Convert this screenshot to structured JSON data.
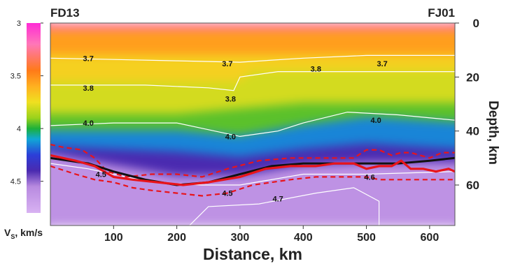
{
  "chart_data": {
    "type": "heatmap",
    "title": "",
    "xlabel": "Distance, km",
    "ylabel": "Depth, km",
    "colorbar_label": "Vs, km/s",
    "colorbar_label_main": "V",
    "colorbar_label_sub": "S",
    "colorbar_label_rest": ", km/s",
    "station_left": "FD13",
    "station_right": "FJ01",
    "xlim": [
      0,
      640
    ],
    "ylim": [
      0,
      75
    ],
    "y_inverted": true,
    "x_ticks": [
      100,
      200,
      300,
      400,
      500,
      600
    ],
    "y_ticks": [
      0,
      20,
      40,
      60
    ],
    "colorbar_range": [
      3.0,
      4.8
    ],
    "colorbar_ticks": [
      "3",
      "3.5",
      "4",
      "4.5"
    ],
    "colormap_stops": [
      {
        "v": 3.0,
        "color": "#ff2bd6"
      },
      {
        "v": 3.2,
        "color": "#ff77b8"
      },
      {
        "v": 3.45,
        "color": "#ff7a18"
      },
      {
        "v": 3.6,
        "color": "#ffb020"
      },
      {
        "v": 3.75,
        "color": "#f0e020"
      },
      {
        "v": 3.9,
        "color": "#9ad21c"
      },
      {
        "v": 4.0,
        "color": "#1cb03a"
      },
      {
        "v": 4.1,
        "color": "#10a8d6"
      },
      {
        "v": 4.25,
        "color": "#2b3fd8"
      },
      {
        "v": 4.4,
        "color": "#4a2ab0"
      },
      {
        "v": 4.55,
        "color": "#b88ae0"
      },
      {
        "v": 4.8,
        "color": "#d8b2f2"
      }
    ],
    "velocity_layers": [
      {
        "vs": 3.25,
        "top": [
          [
            0,
            0
          ],
          [
            640,
            0
          ]
        ],
        "bottom": [
          [
            0,
            3
          ],
          [
            640,
            3
          ]
        ]
      },
      {
        "vs": 3.55,
        "top": [
          [
            0,
            3
          ],
          [
            640,
            3
          ]
        ],
        "bottom": [
          [
            0,
            12
          ],
          [
            640,
            12
          ]
        ]
      },
      {
        "vs": 3.7,
        "top": [
          [
            0,
            12
          ],
          [
            640,
            12
          ]
        ],
        "bottom": [
          [
            0,
            22
          ],
          [
            300,
            22
          ],
          [
            320,
            18
          ],
          [
            640,
            18
          ]
        ]
      },
      {
        "vs": 3.8,
        "top": [
          [
            0,
            22
          ],
          [
            300,
            22
          ],
          [
            320,
            18
          ],
          [
            640,
            18
          ]
        ],
        "bottom": [
          [
            0,
            34
          ],
          [
            200,
            34
          ],
          [
            300,
            32
          ],
          [
            400,
            30
          ],
          [
            640,
            30
          ]
        ]
      },
      {
        "vs": 3.95,
        "top": [
          [
            0,
            34
          ],
          [
            200,
            34
          ],
          [
            300,
            32
          ],
          [
            400,
            30
          ],
          [
            640,
            30
          ]
        ],
        "bottom": [
          [
            0,
            40
          ],
          [
            200,
            40
          ],
          [
            300,
            42
          ],
          [
            400,
            38
          ],
          [
            500,
            35
          ],
          [
            640,
            37
          ]
        ]
      },
      {
        "vs": 4.15,
        "top": [
          [
            0,
            40
          ],
          [
            200,
            40
          ],
          [
            300,
            42
          ],
          [
            400,
            38
          ],
          [
            500,
            35
          ],
          [
            640,
            37
          ]
        ],
        "bottom": [
          [
            0,
            46
          ],
          [
            200,
            48
          ],
          [
            300,
            50
          ],
          [
            400,
            47
          ],
          [
            500,
            45
          ],
          [
            640,
            47
          ]
        ]
      },
      {
        "vs": 4.4,
        "top": [
          [
            0,
            46
          ],
          [
            200,
            48
          ],
          [
            300,
            50
          ],
          [
            400,
            47
          ],
          [
            500,
            45
          ],
          [
            640,
            47
          ]
        ],
        "bottom": [
          [
            0,
            49
          ],
          [
            100,
            53
          ],
          [
            200,
            57
          ],
          [
            300,
            57
          ],
          [
            400,
            53
          ],
          [
            500,
            52
          ],
          [
            640,
            52
          ]
        ]
      },
      {
        "vs": 4.6,
        "top": [
          [
            0,
            49
          ],
          [
            100,
            53
          ],
          [
            200,
            57
          ],
          [
            300,
            57
          ],
          [
            400,
            53
          ],
          [
            500,
            52
          ],
          [
            640,
            52
          ]
        ],
        "bottom": [
          [
            0,
            75
          ],
          [
            640,
            75
          ]
        ]
      }
    ],
    "contours": [
      {
        "label": "3.7",
        "points": [
          [
            0,
            13
          ],
          [
            100,
            13.5
          ],
          [
            200,
            14
          ],
          [
            300,
            14.5
          ],
          [
            400,
            13
          ],
          [
            500,
            12
          ],
          [
            640,
            12
          ]
        ]
      },
      {
        "label": "3.8",
        "points": [
          [
            0,
            23
          ],
          [
            150,
            23
          ],
          [
            250,
            24
          ],
          [
            290,
            25
          ],
          [
            300,
            20
          ],
          [
            360,
            18
          ],
          [
            400,
            18
          ],
          [
            500,
            18
          ],
          [
            640,
            18
          ]
        ]
      },
      {
        "label": "4.0",
        "points": [
          [
            0,
            38
          ],
          [
            100,
            37
          ],
          [
            200,
            37
          ],
          [
            260,
            40
          ],
          [
            300,
            42
          ],
          [
            360,
            40
          ],
          [
            400,
            37
          ],
          [
            470,
            33
          ],
          [
            550,
            34
          ],
          [
            640,
            36
          ]
        ]
      },
      {
        "label": "4.5",
        "points": [
          [
            0,
            52
          ],
          [
            60,
            54
          ],
          [
            100,
            56
          ],
          [
            160,
            59
          ],
          [
            240,
            60
          ],
          [
            300,
            60
          ],
          [
            400,
            56
          ],
          [
            500,
            56
          ],
          [
            640,
            55
          ]
        ]
      },
      {
        "label": "4.7",
        "points": [
          [
            220,
            75
          ],
          [
            250,
            68
          ],
          [
            330,
            67
          ],
          [
            420,
            63
          ],
          [
            480,
            61
          ],
          [
            520,
            66
          ],
          [
            520,
            75
          ]
        ]
      }
    ],
    "contour_labels": [
      {
        "text": "3.7",
        "x": 60,
        "y": 13
      },
      {
        "text": "3.7",
        "x": 280,
        "y": 15
      },
      {
        "text": "3.8",
        "x": 420,
        "y": 17
      },
      {
        "text": "3.7",
        "x": 525,
        "y": 15
      },
      {
        "text": "3.8",
        "x": 60,
        "y": 24
      },
      {
        "text": "3.8",
        "x": 285,
        "y": 28
      },
      {
        "text": "4.0",
        "x": 60,
        "y": 37
      },
      {
        "text": "4.0",
        "x": 285,
        "y": 42
      },
      {
        "text": "4.0",
        "x": 515,
        "y": 36
      },
      {
        "text": "4.5",
        "x": 80,
        "y": 56
      },
      {
        "text": "4.5",
        "x": 280,
        "y": 63
      },
      {
        "text": "4.7",
        "x": 360,
        "y": 65
      },
      {
        "text": "4.6",
        "x": 505,
        "y": 57
      }
    ],
    "moho_black": [
      [
        0,
        50
      ],
      [
        60,
        52
      ],
      [
        100,
        55
      ],
      [
        150,
        58
      ],
      [
        200,
        60
      ],
      [
        250,
        59
      ],
      [
        300,
        56
      ],
      [
        350,
        53
      ],
      [
        400,
        52
      ],
      [
        450,
        52
      ],
      [
        500,
        52
      ],
      [
        550,
        52
      ],
      [
        600,
        51
      ],
      [
        640,
        50
      ]
    ],
    "moho_red": [
      [
        0,
        49
      ],
      [
        20,
        50
      ],
      [
        40,
        51
      ],
      [
        70,
        53
      ],
      [
        100,
        57
      ],
      [
        130,
        58
      ],
      [
        170,
        59
      ],
      [
        210,
        60
      ],
      [
        250,
        59
      ],
      [
        300,
        57
      ],
      [
        340,
        54
      ],
      [
        380,
        53
      ],
      [
        420,
        53
      ],
      [
        450,
        52
      ],
      [
        480,
        52
      ],
      [
        500,
        54
      ],
      [
        520,
        53
      ],
      [
        540,
        53
      ],
      [
        555,
        51
      ],
      [
        570,
        54
      ],
      [
        590,
        54
      ],
      [
        610,
        55
      ],
      [
        630,
        54
      ],
      [
        640,
        55
      ]
    ],
    "moho_red_dashed": [
      [
        [
          0,
          45
        ],
        [
          20,
          46
        ],
        [
          50,
          47
        ],
        [
          70,
          50
        ],
        [
          90,
          55
        ],
        [
          120,
          57
        ],
        [
          160,
          56
        ],
        [
          200,
          56
        ],
        [
          240,
          57
        ],
        [
          280,
          54
        ],
        [
          330,
          51
        ],
        [
          380,
          50
        ],
        [
          420,
          50
        ],
        [
          460,
          50
        ],
        [
          480,
          50
        ],
        [
          500,
          47
        ],
        [
          520,
          47
        ],
        [
          540,
          49
        ],
        [
          555,
          48
        ],
        [
          570,
          48
        ],
        [
          600,
          50
        ],
        [
          620,
          48
        ],
        [
          640,
          48
        ]
      ],
      [
        [
          0,
          53
        ],
        [
          40,
          56
        ],
        [
          70,
          58
        ],
        [
          100,
          59
        ],
        [
          130,
          61
        ],
        [
          160,
          62
        ],
        [
          200,
          63
        ],
        [
          240,
          64
        ],
        [
          280,
          63
        ],
        [
          320,
          60
        ],
        [
          380,
          58
        ],
        [
          420,
          57
        ],
        [
          470,
          57
        ],
        [
          500,
          57
        ],
        [
          520,
          58
        ],
        [
          560,
          58
        ],
        [
          600,
          58
        ],
        [
          640,
          58
        ]
      ]
    ]
  }
}
